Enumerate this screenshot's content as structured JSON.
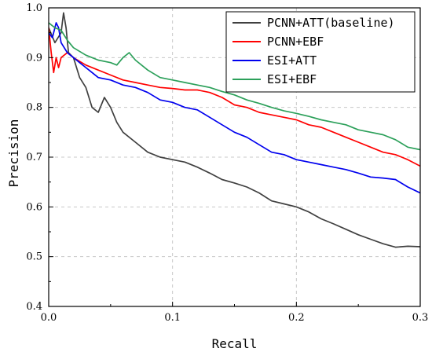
{
  "chart_data": {
    "type": "line",
    "xlabel": "Recall",
    "ylabel": "Precision",
    "xlim": [
      0.0,
      0.3
    ],
    "ylim": [
      0.4,
      1.0
    ],
    "x_ticks": [
      "0.0",
      "0.1",
      "0.2",
      "0.3"
    ],
    "y_ticks": [
      "0.4",
      "0.5",
      "0.6",
      "0.7",
      "0.8",
      "0.9",
      "1.0"
    ],
    "grid": "dashed",
    "legend_position": "top-right",
    "series": [
      {
        "name": "PCNN+ATT(baseline)",
        "color": "#404040",
        "points": [
          [
            0.0,
            0.96
          ],
          [
            0.005,
            0.93
          ],
          [
            0.01,
            0.95
          ],
          [
            0.012,
            0.99
          ],
          [
            0.014,
            0.96
          ],
          [
            0.016,
            0.91
          ],
          [
            0.02,
            0.9
          ],
          [
            0.025,
            0.86
          ],
          [
            0.03,
            0.84
          ],
          [
            0.035,
            0.8
          ],
          [
            0.04,
            0.79
          ],
          [
            0.045,
            0.82
          ],
          [
            0.05,
            0.8
          ],
          [
            0.055,
            0.77
          ],
          [
            0.06,
            0.75
          ],
          [
            0.07,
            0.73
          ],
          [
            0.08,
            0.71
          ],
          [
            0.09,
            0.7
          ],
          [
            0.1,
            0.695
          ],
          [
            0.11,
            0.69
          ],
          [
            0.12,
            0.68
          ],
          [
            0.13,
            0.668
          ],
          [
            0.14,
            0.655
          ],
          [
            0.15,
            0.648
          ],
          [
            0.16,
            0.64
          ],
          [
            0.17,
            0.628
          ],
          [
            0.18,
            0.612
          ],
          [
            0.19,
            0.606
          ],
          [
            0.2,
            0.6
          ],
          [
            0.21,
            0.59
          ],
          [
            0.22,
            0.576
          ],
          [
            0.23,
            0.566
          ],
          [
            0.24,
            0.555
          ],
          [
            0.25,
            0.544
          ],
          [
            0.26,
            0.535
          ],
          [
            0.27,
            0.526
          ],
          [
            0.28,
            0.519
          ],
          [
            0.29,
            0.521
          ],
          [
            0.3,
            0.52
          ]
        ]
      },
      {
        "name": "PCNN+EBF",
        "color": "#ff0000",
        "points": [
          [
            0.0,
            0.96
          ],
          [
            0.002,
            0.91
          ],
          [
            0.004,
            0.87
          ],
          [
            0.006,
            0.9
          ],
          [
            0.008,
            0.88
          ],
          [
            0.01,
            0.9
          ],
          [
            0.015,
            0.91
          ],
          [
            0.02,
            0.9
          ],
          [
            0.03,
            0.885
          ],
          [
            0.04,
            0.875
          ],
          [
            0.05,
            0.865
          ],
          [
            0.06,
            0.855
          ],
          [
            0.07,
            0.85
          ],
          [
            0.08,
            0.845
          ],
          [
            0.09,
            0.84
          ],
          [
            0.1,
            0.838
          ],
          [
            0.11,
            0.835
          ],
          [
            0.12,
            0.835
          ],
          [
            0.13,
            0.83
          ],
          [
            0.14,
            0.82
          ],
          [
            0.15,
            0.805
          ],
          [
            0.16,
            0.8
          ],
          [
            0.17,
            0.79
          ],
          [
            0.18,
            0.785
          ],
          [
            0.19,
            0.78
          ],
          [
            0.2,
            0.775
          ],
          [
            0.21,
            0.765
          ],
          [
            0.22,
            0.76
          ],
          [
            0.23,
            0.75
          ],
          [
            0.24,
            0.74
          ],
          [
            0.25,
            0.73
          ],
          [
            0.26,
            0.72
          ],
          [
            0.27,
            0.71
          ],
          [
            0.28,
            0.705
          ],
          [
            0.29,
            0.695
          ],
          [
            0.3,
            0.682
          ]
        ]
      },
      {
        "name": "ESI+ATT",
        "color": "#0000ee",
        "points": [
          [
            0.0,
            0.95
          ],
          [
            0.003,
            0.94
          ],
          [
            0.006,
            0.97
          ],
          [
            0.008,
            0.96
          ],
          [
            0.01,
            0.93
          ],
          [
            0.015,
            0.91
          ],
          [
            0.02,
            0.9
          ],
          [
            0.025,
            0.89
          ],
          [
            0.03,
            0.88
          ],
          [
            0.035,
            0.87
          ],
          [
            0.04,
            0.86
          ],
          [
            0.05,
            0.855
          ],
          [
            0.06,
            0.845
          ],
          [
            0.07,
            0.84
          ],
          [
            0.08,
            0.83
          ],
          [
            0.09,
            0.815
          ],
          [
            0.1,
            0.81
          ],
          [
            0.11,
            0.8
          ],
          [
            0.12,
            0.795
          ],
          [
            0.13,
            0.78
          ],
          [
            0.14,
            0.765
          ],
          [
            0.15,
            0.75
          ],
          [
            0.16,
            0.74
          ],
          [
            0.17,
            0.725
          ],
          [
            0.18,
            0.71
          ],
          [
            0.19,
            0.705
          ],
          [
            0.2,
            0.695
          ],
          [
            0.21,
            0.69
          ],
          [
            0.22,
            0.685
          ],
          [
            0.23,
            0.68
          ],
          [
            0.24,
            0.675
          ],
          [
            0.25,
            0.668
          ],
          [
            0.26,
            0.66
          ],
          [
            0.27,
            0.658
          ],
          [
            0.28,
            0.655
          ],
          [
            0.29,
            0.64
          ],
          [
            0.3,
            0.628
          ]
        ]
      },
      {
        "name": "ESI+EBF",
        "color": "#2ca05a",
        "points": [
          [
            0.0,
            0.97
          ],
          [
            0.005,
            0.96
          ],
          [
            0.01,
            0.955
          ],
          [
            0.015,
            0.935
          ],
          [
            0.02,
            0.92
          ],
          [
            0.03,
            0.905
          ],
          [
            0.04,
            0.895
          ],
          [
            0.05,
            0.89
          ],
          [
            0.055,
            0.885
          ],
          [
            0.06,
            0.9
          ],
          [
            0.065,
            0.91
          ],
          [
            0.07,
            0.895
          ],
          [
            0.08,
            0.875
          ],
          [
            0.09,
            0.86
          ],
          [
            0.1,
            0.855
          ],
          [
            0.11,
            0.85
          ],
          [
            0.12,
            0.845
          ],
          [
            0.13,
            0.84
          ],
          [
            0.14,
            0.832
          ],
          [
            0.15,
            0.825
          ],
          [
            0.16,
            0.815
          ],
          [
            0.17,
            0.808
          ],
          [
            0.18,
            0.8
          ],
          [
            0.19,
            0.793
          ],
          [
            0.2,
            0.788
          ],
          [
            0.21,
            0.782
          ],
          [
            0.22,
            0.775
          ],
          [
            0.23,
            0.77
          ],
          [
            0.24,
            0.765
          ],
          [
            0.25,
            0.755
          ],
          [
            0.26,
            0.75
          ],
          [
            0.27,
            0.745
          ],
          [
            0.28,
            0.735
          ],
          [
            0.29,
            0.72
          ],
          [
            0.3,
            0.715
          ]
        ]
      }
    ]
  }
}
